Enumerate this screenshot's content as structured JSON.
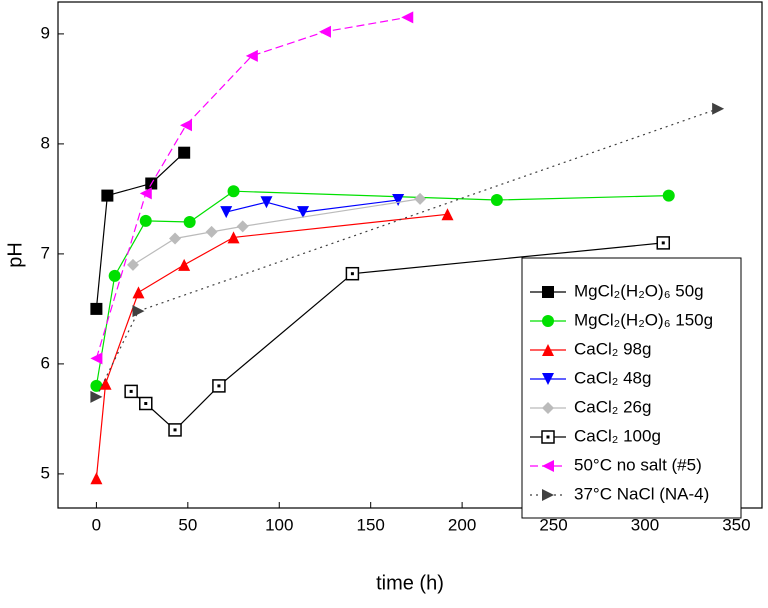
{
  "chart_data": {
    "type": "line",
    "x_label": "time (h)",
    "y_label": "pH",
    "xlim": [
      -21,
      364
    ],
    "ylim": [
      4.69,
      9.29
    ],
    "xticks": [
      0,
      50,
      100,
      150,
      200,
      250,
      300,
      350
    ],
    "yticks": [
      5,
      6,
      7,
      8,
      9
    ],
    "legend": "lower right",
    "series": [
      {
        "name": "MgCl₂(H₂O)₆ 50g",
        "color": "#000000",
        "marker": "square",
        "dash": "solid",
        "x": [
          0,
          6,
          30,
          48
        ],
        "values": [
          6.5,
          7.53,
          7.64,
          7.92
        ]
      },
      {
        "name": "MgCl₂(H₂O)₆ 150g",
        "color": "#00e000",
        "marker": "circle",
        "dash": "solid",
        "x": [
          0,
          10,
          27,
          51,
          75,
          219,
          313
        ],
        "values": [
          5.8,
          6.8,
          7.3,
          7.29,
          7.57,
          7.49,
          7.53
        ]
      },
      {
        "name": "CaCl₂ 98g",
        "color": "#ff0000",
        "marker": "triangle",
        "dash": "solid",
        "x": [
          0,
          5,
          23,
          48,
          75,
          192
        ],
        "values": [
          4.96,
          5.82,
          6.65,
          6.9,
          7.15,
          7.36
        ]
      },
      {
        "name": "CaCl₂ 48g",
        "color": "#0000ff",
        "marker": "triangle-down",
        "dash": "solid",
        "x": [
          71,
          93,
          113,
          165
        ],
        "values": [
          7.38,
          7.47,
          7.38,
          7.49
        ]
      },
      {
        "name": "CaCl₂ 26g",
        "color": "#bbbbbb",
        "marker": "diamond",
        "dash": "solid",
        "x": [
          20,
          43,
          63,
          80,
          177
        ],
        "values": [
          6.9,
          7.14,
          7.2,
          7.25,
          7.5
        ]
      },
      {
        "name": "CaCl₂ 100g",
        "color": "#000000",
        "marker": "open-square",
        "dash": "solid",
        "x": [
          19,
          27,
          43,
          67,
          140,
          310
        ],
        "values": [
          5.75,
          5.64,
          5.4,
          5.8,
          6.82,
          7.1
        ]
      },
      {
        "name": "50°C no salt (#5)",
        "color": "#ff00ff",
        "marker": "triangle-left",
        "dash": "dashed",
        "x": [
          0,
          27,
          49,
          85,
          125,
          170
        ],
        "values": [
          6.05,
          7.55,
          8.17,
          8.8,
          9.02,
          9.15
        ]
      },
      {
        "name": "37°C NaCl (NA-4)",
        "color": "#404040",
        "marker": "triangle-right",
        "dash": "dotted",
        "x": [
          0,
          23,
          340
        ],
        "values": [
          5.7,
          6.48,
          8.32
        ]
      }
    ]
  }
}
